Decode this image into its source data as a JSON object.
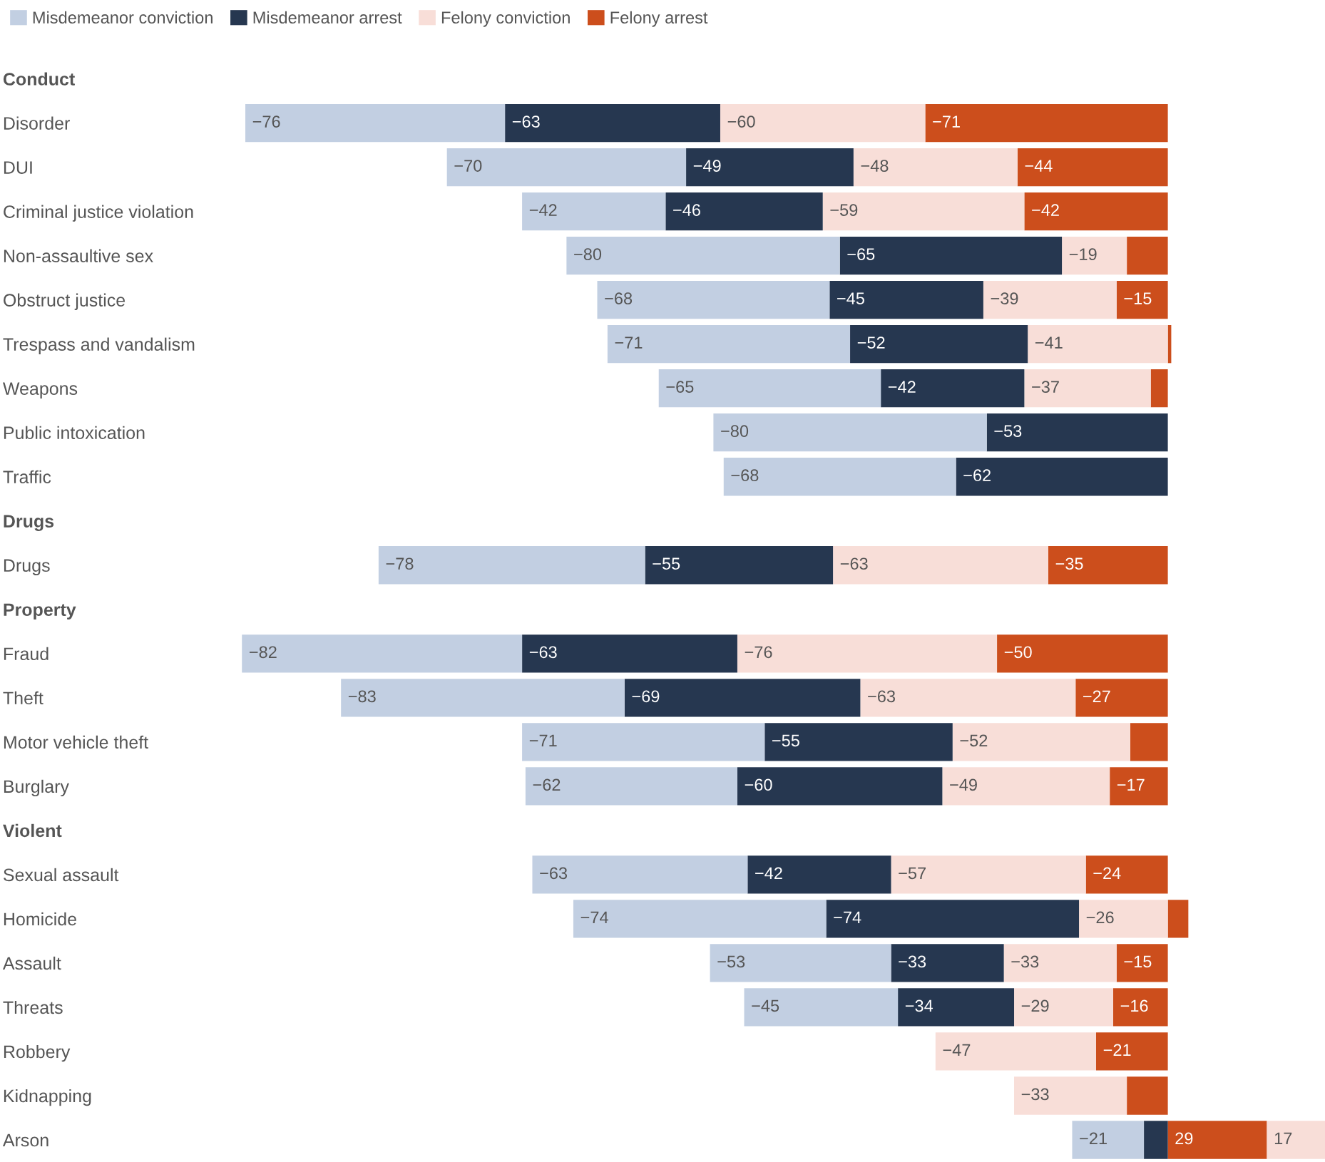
{
  "chart_data": {
    "type": "bar",
    "orientation": "horizontal",
    "stacked": true,
    "legend": "top left",
    "tick_labels": "y",
    "grid": false,
    "xlim": [
      -272,
      46
    ],
    "categories": [
      "Conduct",
      "Disorder",
      "DUI",
      "Criminal justice violation",
      "Non-assaultive sex",
      "Obstruct justice",
      "Trespass and vandalism",
      "Weapons",
      "Public intoxication",
      "Traffic",
      "Drugs",
      "Drugs",
      "Property",
      "Fraud",
      "Theft",
      "Motor vehicle theft",
      "Burglary",
      "Violent",
      "Sexual assault",
      "Homicide",
      "Assault",
      "Threats",
      "Robbery",
      "Kidnapping",
      "Arson"
    ],
    "series": [
      {
        "name": "Felony arrest",
        "color": "#cc4e1c",
        "values": [
          null,
          -71,
          -44,
          -42,
          -12,
          -15,
          1,
          -5,
          null,
          null,
          null,
          -35,
          null,
          -50,
          -27,
          -11,
          -17,
          null,
          -24,
          6,
          -15,
          -16,
          -21,
          -12,
          29
        ],
        "value_labels": [
          null,
          "−71",
          "−44",
          "−42",
          null,
          "−15",
          null,
          null,
          null,
          null,
          null,
          "−35",
          null,
          "−50",
          "−27",
          null,
          "−17",
          null,
          "−24",
          null,
          "−15",
          "−16",
          "−21",
          null,
          "29"
        ]
      },
      {
        "name": "Felony conviction",
        "color": "#f8ded8",
        "values": [
          null,
          -60,
          -48,
          -59,
          -19,
          -39,
          -41,
          -37,
          null,
          null,
          null,
          -63,
          null,
          -76,
          -63,
          -52,
          -49,
          null,
          -57,
          -26,
          -33,
          -29,
          -47,
          -33,
          17
        ],
        "value_labels": [
          null,
          "−60",
          "−48",
          "−59",
          "−19",
          "−39",
          "−41",
          "−37",
          null,
          null,
          null,
          "−63",
          null,
          "−76",
          "−63",
          "−52",
          "−49",
          null,
          "−57",
          "−26",
          "−33",
          "−29",
          "−47",
          "−33",
          "17"
        ]
      },
      {
        "name": "Misdemeanor arrest",
        "color": "#263750",
        "values": [
          null,
          -63,
          -49,
          -46,
          -65,
          -45,
          -52,
          -42,
          -53,
          -62,
          null,
          -55,
          null,
          -63,
          -69,
          -55,
          -60,
          null,
          -42,
          -74,
          -33,
          -34,
          null,
          null,
          -7
        ],
        "value_labels": [
          null,
          "−63",
          "−49",
          "−46",
          "−65",
          "−45",
          "−52",
          "−42",
          "−53",
          "−62",
          null,
          "−55",
          null,
          "−63",
          "−69",
          "−55",
          "−60",
          null,
          "−42",
          "−74",
          "−33",
          "−34",
          null,
          null,
          null
        ]
      },
      {
        "name": "Misdemeanor conviction",
        "color": "#c2cfe2",
        "values": [
          null,
          -76,
          -70,
          -42,
          -80,
          -68,
          -71,
          -65,
          -80,
          -68,
          null,
          -78,
          null,
          -82,
          -83,
          -71,
          -62,
          null,
          -63,
          -74,
          -53,
          -45,
          null,
          null,
          -21
        ],
        "value_labels": [
          null,
          "−76",
          "−70",
          "−42",
          "−80",
          "−68",
          "−71",
          "−65",
          "−80",
          "−68",
          null,
          "−78",
          null,
          "−82",
          "−83",
          "−71",
          "−62",
          null,
          "−63",
          "−74",
          "−53",
          "−45",
          null,
          null,
          "−21"
        ]
      }
    ]
  }
}
